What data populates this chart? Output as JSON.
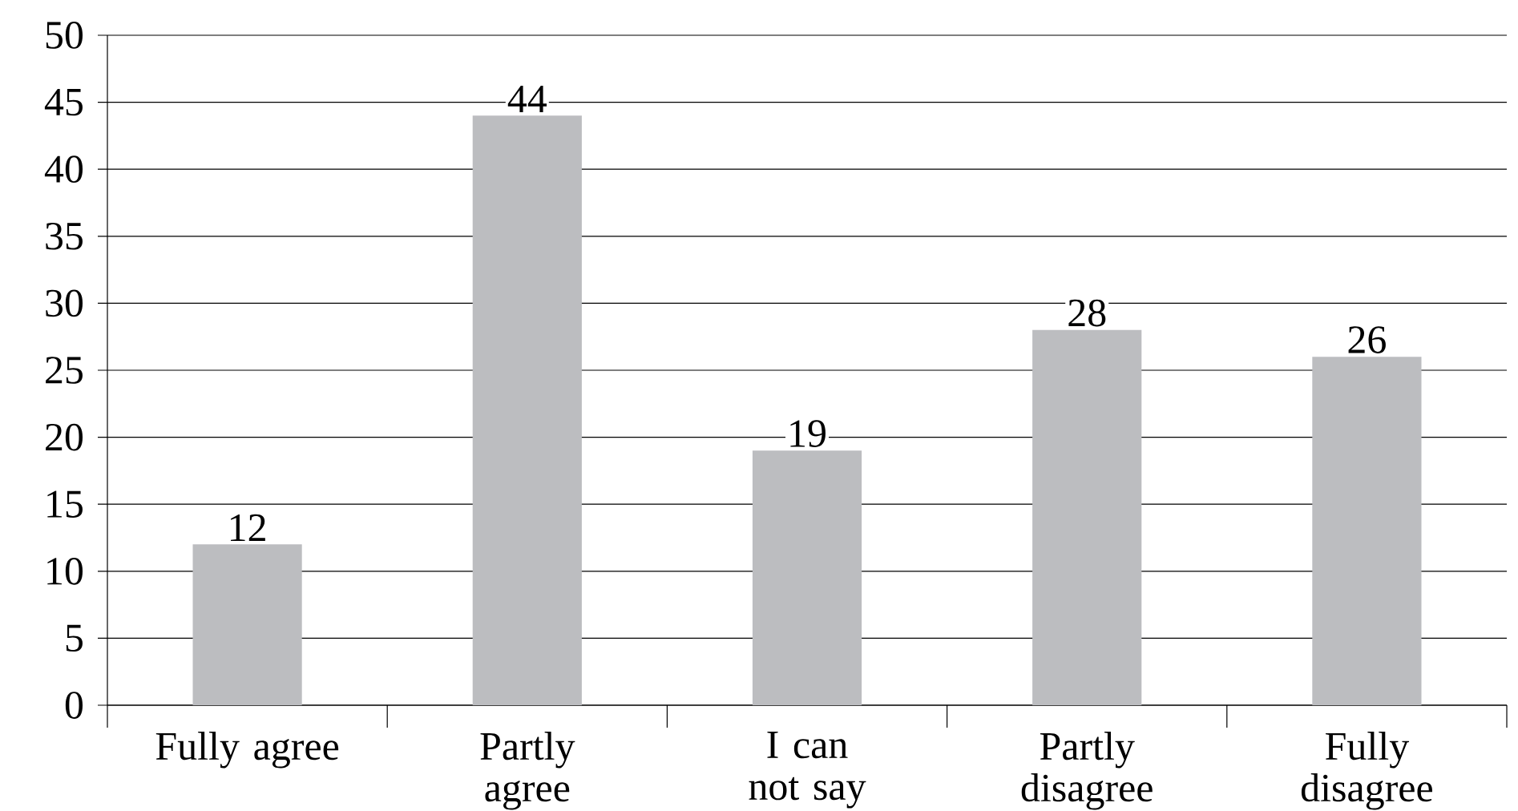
{
  "chart_data": {
    "type": "bar",
    "categories": [
      "Fully agree",
      "Partly agree",
      "I can not say",
      "Partly disagree",
      "Fully disagree"
    ],
    "values": [
      12,
      44,
      19,
      28,
      26
    ],
    "color": "#bcbdc0",
    "ylim": [
      0,
      50
    ],
    "yticks": [
      0,
      5,
      10,
      15,
      20,
      25,
      30,
      35,
      40,
      45,
      50
    ],
    "grid": "y",
    "data_labels": true
  }
}
